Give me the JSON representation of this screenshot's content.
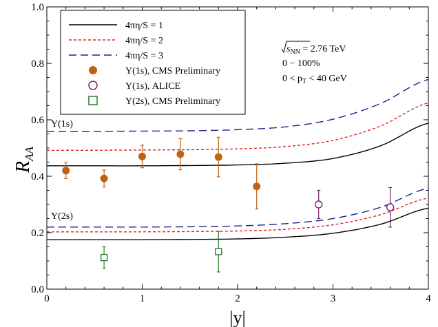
{
  "chart_data": {
    "type": "line",
    "xlabel": "|y|",
    "ylabel_main": "R",
    "ylabel_sub": "AA",
    "xlim": [
      0,
      4
    ],
    "ylim": [
      0,
      1.0
    ],
    "xticks": [
      0,
      1,
      2,
      3,
      4
    ],
    "yticks": [
      0.0,
      0.2,
      0.4,
      0.6,
      0.8,
      1.0
    ],
    "xtick_labels": [
      "0",
      "1",
      "2",
      "3",
      "4"
    ],
    "ytick_labels": [
      "0.0",
      "0.2",
      "0.4",
      "0.6",
      "0.8",
      "1.0"
    ],
    "legend_position": "top-left",
    "grid": false,
    "annotations": {
      "energy_prefix": "s",
      "energy_sub": "NN",
      "energy_suffix": " = 2.76 TeV",
      "centrality": "0 − 100%",
      "pt_prefix": "0 < p",
      "pt_sub": "T",
      "pt_suffix": " < 40 GeV",
      "label_1s": "Υ(1s)",
      "label_2s": "Υ(2s)"
    },
    "curve_x": [
      0,
      0.5,
      1.0,
      1.5,
      2.0,
      2.5,
      3.0,
      3.5,
      4.0
    ],
    "series": [
      {
        "name": "4πη/S = 1",
        "group": "1s",
        "color": "#000000",
        "dash": "none",
        "y": [
          0.437,
          0.437,
          0.437,
          0.438,
          0.44,
          0.446,
          0.463,
          0.508,
          0.588
        ]
      },
      {
        "name": "4πη/S = 2",
        "group": "1s",
        "color": "#e0201b",
        "dash": "4,3",
        "y": [
          0.492,
          0.492,
          0.493,
          0.494,
          0.497,
          0.505,
          0.527,
          0.578,
          0.66
        ]
      },
      {
        "name": "4πη/S = 3",
        "group": "1s",
        "color": "#1f1f8f",
        "dash": "11,6",
        "y": [
          0.559,
          0.559,
          0.56,
          0.561,
          0.565,
          0.575,
          0.602,
          0.658,
          0.743
        ]
      },
      {
        "name": "4πη/S = 1",
        "group": "2s",
        "color": "#000000",
        "dash": "none",
        "y": [
          0.175,
          0.175,
          0.175,
          0.176,
          0.178,
          0.184,
          0.198,
          0.23,
          0.287
        ]
      },
      {
        "name": "4πη/S = 2",
        "group": "2s",
        "color": "#e0201b",
        "dash": "4,3",
        "y": [
          0.203,
          0.203,
          0.203,
          0.204,
          0.206,
          0.212,
          0.228,
          0.264,
          0.323
        ]
      },
      {
        "name": "4πη/S = 3",
        "group": "2s",
        "color": "#1f1f8f",
        "dash": "11,6",
        "y": [
          0.22,
          0.22,
          0.22,
          0.221,
          0.224,
          0.232,
          0.25,
          0.29,
          0.358
        ]
      }
    ],
    "data_series": [
      {
        "name": "Υ(1s), CMS Preliminary",
        "marker": "filled-circle",
        "color": "#c0620f",
        "points": [
          {
            "x": 0.2,
            "y": 0.42,
            "err": 0.028,
            "syst": 0.015
          },
          {
            "x": 0.6,
            "y": 0.392,
            "err": 0.03,
            "syst": 0.015
          },
          {
            "x": 1.0,
            "y": 0.47,
            "err": 0.04,
            "syst": 0.02
          },
          {
            "x": 1.4,
            "y": 0.478,
            "err": 0.055,
            "syst": 0.025
          },
          {
            "x": 1.8,
            "y": 0.468,
            "err": 0.07,
            "syst": 0.03
          },
          {
            "x": 2.2,
            "y": 0.364,
            "err": 0.08,
            "syst": 0.04
          }
        ]
      },
      {
        "name": "Υ(1s), ALICE",
        "marker": "open-circle",
        "color": "#7a1f6e",
        "points": [
          {
            "x": 2.85,
            "y": 0.3,
            "err": 0.05,
            "syst": 0.0
          },
          {
            "x": 3.6,
            "y": 0.29,
            "err": 0.07,
            "syst": 0.0
          }
        ]
      },
      {
        "name": "Υ(2s), CMS Preliminary",
        "marker": "open-square",
        "color": "#2a7a2a",
        "points": [
          {
            "x": 0.6,
            "y": 0.112,
            "err": 0.038,
            "syst": 0.0
          },
          {
            "x": 1.8,
            "y": 0.133,
            "err": 0.072,
            "syst": 0.0
          }
        ]
      }
    ],
    "legend": [
      {
        "label": "4πη/S = 1",
        "kind": "line",
        "color": "#000000",
        "dash": "none"
      },
      {
        "label": "4πη/S = 2",
        "kind": "line",
        "color": "#e0201b",
        "dash": "4,3"
      },
      {
        "label": "4πη/S = 3",
        "kind": "line",
        "color": "#1f1f8f",
        "dash": "11,6"
      },
      {
        "label": "Υ(1s), CMS Preliminary",
        "kind": "filled-circle",
        "color": "#c0620f"
      },
      {
        "label": "Υ(1s), ALICE",
        "kind": "open-circle",
        "color": "#7a1f6e"
      },
      {
        "label": "Υ(2s), CMS Preliminary",
        "kind": "open-square",
        "color": "#2a7a2a"
      }
    ]
  }
}
